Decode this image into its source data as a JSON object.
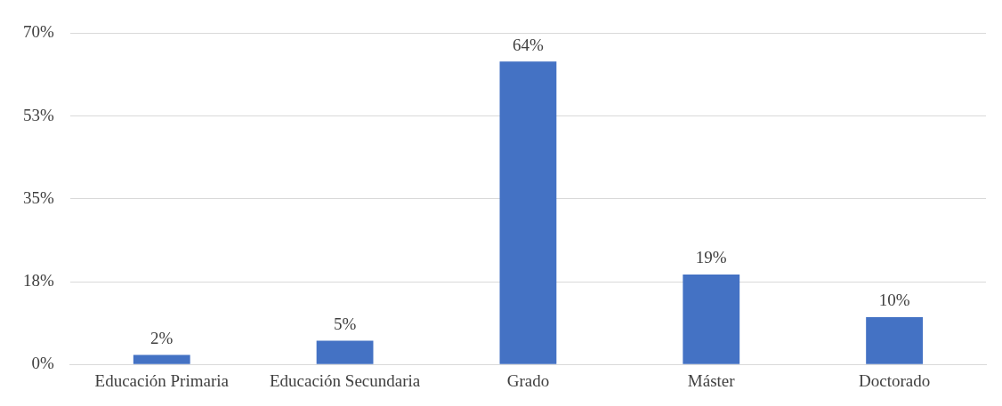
{
  "chart_data": {
    "type": "bar",
    "categories": [
      "Educación Primaria",
      "Educación Secundaria",
      "Grado",
      "Máster",
      "Doctorado"
    ],
    "values": [
      2,
      5,
      64,
      19,
      10
    ],
    "value_labels": [
      "2%",
      "5%",
      "64%",
      "19%",
      "10%"
    ],
    "color": "#4472c4",
    "ylim": [
      0,
      70
    ],
    "yticks": [
      {
        "value": 0,
        "label": "0%"
      },
      {
        "value": 17.5,
        "label": "18%"
      },
      {
        "value": 35,
        "label": "35%"
      },
      {
        "value": 52.5,
        "label": "53%"
      },
      {
        "value": 70,
        "label": "70%"
      }
    ],
    "grid": "y",
    "legend": false
  }
}
